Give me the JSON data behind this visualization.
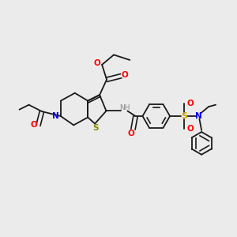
{
  "background_color": "#ebebeb",
  "bond_color": "#1a1a1a",
  "colors": {
    "O": "#ff0000",
    "N": "#0000ee",
    "S_thio": "#888800",
    "S_sulfo": "#ccaa00",
    "NH": "#888888",
    "C": "#1a1a1a"
  },
  "figsize": [
    3.0,
    3.0
  ],
  "dpi": 100
}
